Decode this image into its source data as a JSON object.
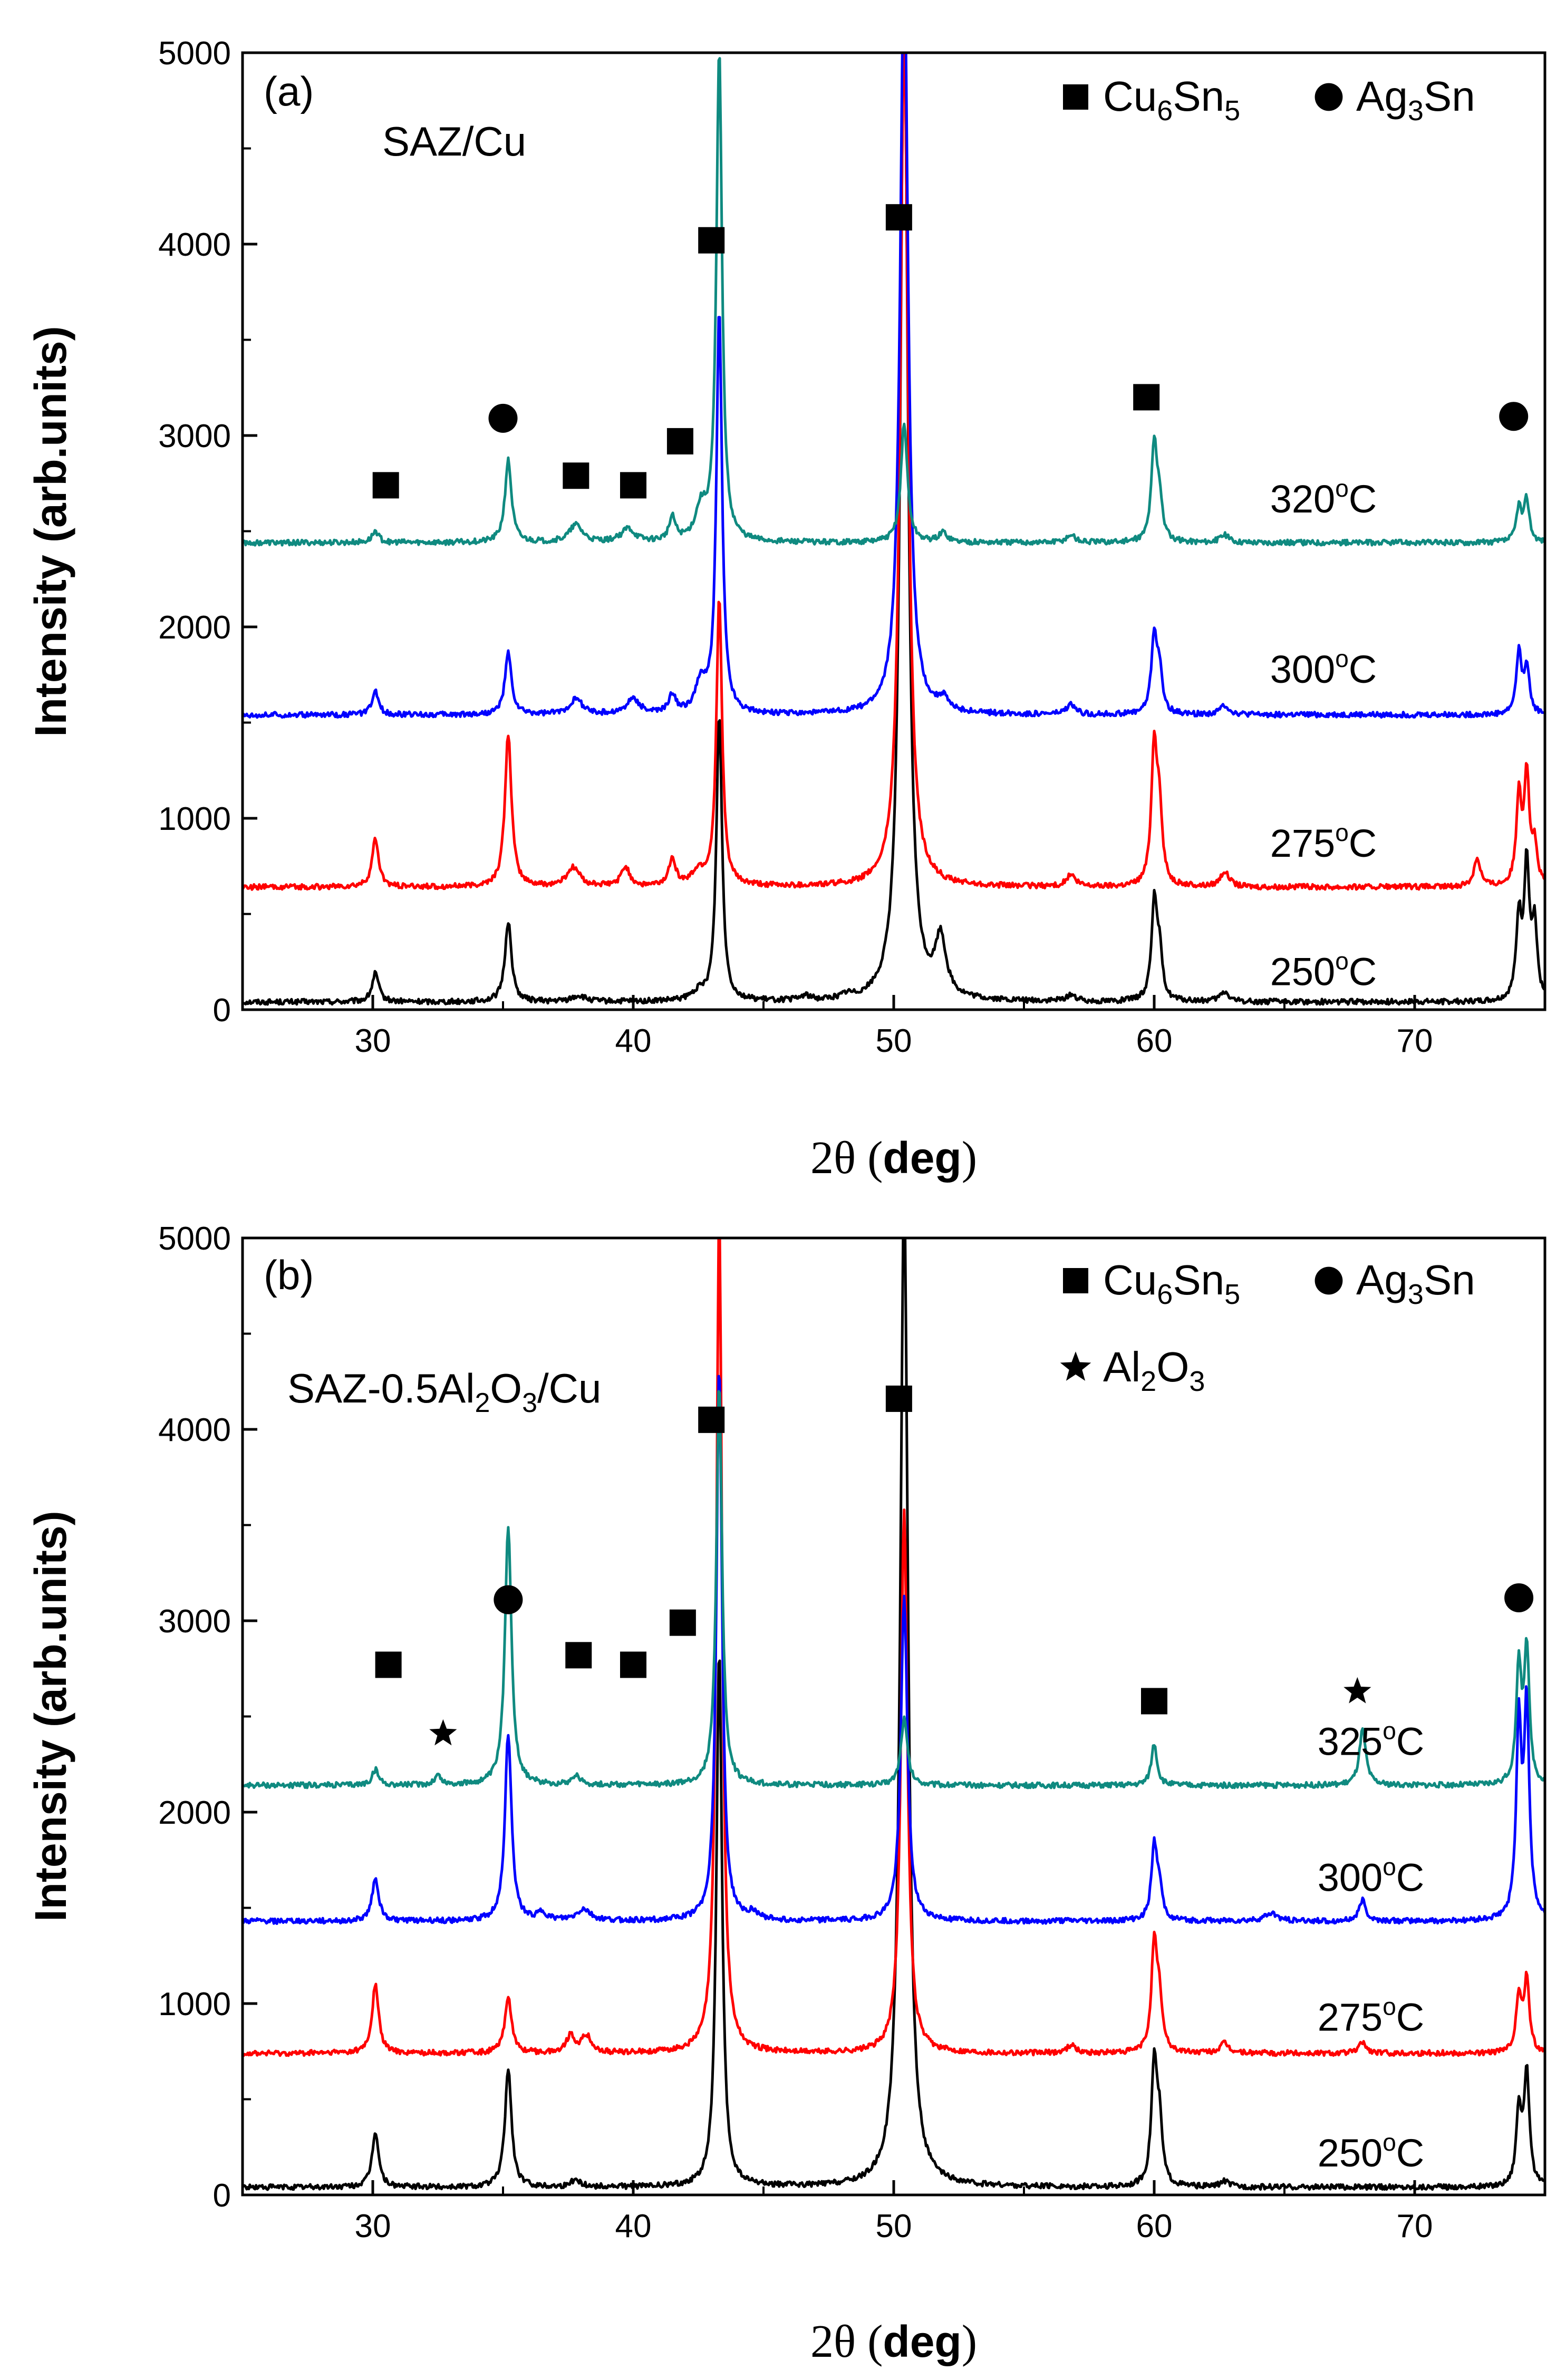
{
  "chart_data": [
    {
      "type": "line",
      "panel_label": "(a)",
      "title": "SAZ/Cu",
      "xlabel": {
        "symbol": "2θ",
        "open": " (",
        "unit": "deg",
        "close": ")"
      },
      "ylabel": "Intensity (arb.units)",
      "xlim": [
        25,
        75
      ],
      "ylim": [
        0,
        5000
      ],
      "xticks": [
        30,
        40,
        50,
        60,
        70
      ],
      "yticks": [
        0,
        1000,
        2000,
        3000,
        4000,
        5000
      ],
      "legend": [
        {
          "marker": "square",
          "formula": [
            "Cu",
            "6",
            "Sn",
            "5"
          ]
        },
        {
          "marker": "circle",
          "formula": [
            "Ag",
            "3",
            "Sn"
          ]
        }
      ],
      "series": [
        {
          "name": "250°C",
          "label_parts": [
            "250",
            "o",
            "C"
          ],
          "color": "#000000",
          "baseline": 40,
          "label_y": 200,
          "peaks": [
            [
              30.1,
              150,
              0.15
            ],
            [
              35.2,
              420,
              0.15
            ],
            [
              37.9,
              30,
              0.3
            ],
            [
              42.5,
              40,
              0.3
            ],
            [
              43.3,
              1500,
              0.13
            ],
            [
              46.6,
              25,
              0.2
            ],
            [
              48.2,
              20,
              0.2
            ],
            [
              50.4,
              5200,
              0.18
            ],
            [
              51.8,
              300,
              0.25
            ],
            [
              56.8,
              35,
              0.2
            ],
            [
              60.0,
              500,
              0.13
            ],
            [
              60.2,
              230,
              0.13
            ],
            [
              62.7,
              50,
              0.2
            ],
            [
              74.0,
              420,
              0.12
            ],
            [
              74.3,
              700,
              0.12
            ],
            [
              74.6,
              380,
              0.12
            ]
          ]
        },
        {
          "name": "275°C",
          "label_parts": [
            "275",
            "o",
            "C"
          ],
          "color": "#ff0000",
          "baseline": 640,
          "label_y": 870,
          "peaks": [
            [
              30.1,
              250,
              0.15
            ],
            [
              35.2,
              800,
              0.15
            ],
            [
              37.7,
              100,
              0.3
            ],
            [
              39.7,
              100,
              0.2
            ],
            [
              41.5,
              150,
              0.15
            ],
            [
              42.5,
              70,
              0.3
            ],
            [
              43.3,
              1500,
              0.13
            ],
            [
              50.4,
              4500,
              0.18
            ],
            [
              56.8,
              60,
              0.2
            ],
            [
              60.0,
              720,
              0.13
            ],
            [
              60.2,
              350,
              0.13
            ],
            [
              62.7,
              80,
              0.2
            ],
            [
              72.4,
              150,
              0.15
            ],
            [
              74.0,
              450,
              0.12
            ],
            [
              74.3,
              570,
              0.12
            ],
            [
              74.6,
              200,
              0.12
            ]
          ]
        },
        {
          "name": "300°C",
          "label_parts": [
            "300",
            "o",
            "C"
          ],
          "color": "#0000ff",
          "baseline": 1540,
          "label_y": 1780,
          "peaks": [
            [
              30.1,
              120,
              0.15
            ],
            [
              35.2,
              320,
              0.15
            ],
            [
              37.8,
              80,
              0.3
            ],
            [
              40.0,
              80,
              0.3
            ],
            [
              41.5,
              100,
              0.15
            ],
            [
              42.6,
              150,
              0.25
            ],
            [
              43.3,
              2100,
              0.13
            ],
            [
              50.4,
              4000,
              0.18
            ],
            [
              51.9,
              60,
              0.2
            ],
            [
              56.8,
              50,
              0.2
            ],
            [
              60.0,
              400,
              0.13
            ],
            [
              60.2,
              200,
              0.13
            ],
            [
              62.7,
              50,
              0.2
            ],
            [
              74.0,
              320,
              0.12
            ],
            [
              74.3,
              250,
              0.12
            ]
          ]
        },
        {
          "name": "320°C",
          "label_parts": [
            "320",
            "o",
            "C"
          ],
          "color": "#0f8a80",
          "baseline": 2440,
          "label_y": 2670,
          "peaks": [
            [
              30.1,
              60,
              0.15
            ],
            [
              35.2,
              430,
              0.15
            ],
            [
              37.8,
              90,
              0.3
            ],
            [
              39.8,
              70,
              0.3
            ],
            [
              41.5,
              120,
              0.15
            ],
            [
              42.6,
              160,
              0.25
            ],
            [
              43.3,
              2560,
              0.13
            ],
            [
              50.4,
              620,
              0.15
            ],
            [
              51.9,
              50,
              0.2
            ],
            [
              56.8,
              40,
              0.2
            ],
            [
              60.0,
              500,
              0.13
            ],
            [
              60.2,
              200,
              0.13
            ],
            [
              62.7,
              40,
              0.2
            ],
            [
              74.0,
              180,
              0.12
            ],
            [
              74.3,
              220,
              0.12
            ]
          ]
        }
      ],
      "markers": [
        {
          "shape": "square",
          "x": 30.5,
          "y": 2740
        },
        {
          "shape": "circle",
          "x": 35.0,
          "y": 3090
        },
        {
          "shape": "square",
          "x": 37.8,
          "y": 2790
        },
        {
          "shape": "square",
          "x": 40.0,
          "y": 2740
        },
        {
          "shape": "square",
          "x": 41.8,
          "y": 2970
        },
        {
          "shape": "square",
          "x": 43.0,
          "y": 4020
        },
        {
          "shape": "square",
          "x": 50.2,
          "y": 4140
        },
        {
          "shape": "square",
          "x": 59.7,
          "y": 3200
        },
        {
          "shape": "circle",
          "x": 73.8,
          "y": 3100
        }
      ]
    },
    {
      "type": "line",
      "panel_label": "(b)",
      "title": [
        "SAZ-0.5Al",
        "2",
        "O",
        "3",
        "/Cu"
      ],
      "xlabel": {
        "symbol": "2θ",
        "open": " (",
        "unit": "deg",
        "close": ")"
      },
      "ylabel": "Intensity (arb.units)",
      "xlim": [
        25,
        75
      ],
      "ylim": [
        0,
        5000
      ],
      "xticks": [
        30,
        40,
        50,
        60,
        70
      ],
      "yticks": [
        0,
        1000,
        2000,
        3000,
        4000,
        5000
      ],
      "legend": [
        {
          "marker": "square",
          "formula": [
            "Cu",
            "6",
            "Sn",
            "5"
          ]
        },
        {
          "marker": "circle",
          "formula": [
            "Ag",
            "3",
            "Sn"
          ]
        },
        {
          "marker": "star",
          "formula": [
            "Al",
            "2",
            "O",
            "3"
          ]
        }
      ],
      "series": [
        {
          "name": "250°C",
          "label_parts": [
            "250",
            "o",
            "C"
          ],
          "color": "#000000",
          "baseline": 40,
          "label_y": 220,
          "peaks": [
            [
              30.1,
              290,
              0.15
            ],
            [
              35.2,
              620,
              0.15
            ],
            [
              37.8,
              40,
              0.2
            ],
            [
              43.3,
              2800,
              0.13
            ],
            [
              50.4,
              5200,
              0.18
            ],
            [
              60.0,
              630,
              0.13
            ],
            [
              60.2,
              300,
              0.13
            ],
            [
              62.7,
              30,
              0.2
            ],
            [
              74.0,
              400,
              0.12
            ],
            [
              74.3,
              600,
              0.12
            ]
          ]
        },
        {
          "name": "275°C",
          "label_parts": [
            "275",
            "o",
            "C"
          ],
          "color": "#ff0000",
          "baseline": 740,
          "label_y": 930,
          "peaks": [
            [
              30.1,
              360,
              0.15
            ],
            [
              35.2,
              300,
              0.15
            ],
            [
              37.6,
              90,
              0.2
            ],
            [
              38.2,
              90,
              0.2
            ],
            [
              43.3,
              4400,
              0.13
            ],
            [
              50.4,
              2850,
              0.15
            ],
            [
              56.8,
              40,
              0.2
            ],
            [
              60.0,
              550,
              0.13
            ],
            [
              60.2,
              250,
              0.13
            ],
            [
              62.7,
              50,
              0.2
            ],
            [
              68.0,
              60,
              0.15
            ],
            [
              74.0,
              300,
              0.12
            ],
            [
              74.3,
              380,
              0.12
            ]
          ]
        },
        {
          "name": "300°C",
          "label_parts": [
            "300",
            "o",
            "C"
          ],
          "color": "#0000ff",
          "baseline": 1430,
          "label_y": 1660,
          "peaks": [
            [
              30.1,
              230,
              0.15
            ],
            [
              35.2,
              980,
              0.15
            ],
            [
              36.5,
              40,
              0.2
            ],
            [
              38.1,
              60,
              0.3
            ],
            [
              43.3,
              2900,
              0.13
            ],
            [
              44.6,
              40,
              0.2
            ],
            [
              50.4,
              1700,
              0.15
            ],
            [
              60.0,
              380,
              0.13
            ],
            [
              60.2,
              150,
              0.13
            ],
            [
              64.5,
              40,
              0.3
            ],
            [
              68.0,
              110,
              0.15
            ],
            [
              74.0,
              1000,
              0.12
            ],
            [
              74.3,
              1100,
              0.12
            ]
          ]
        },
        {
          "name": "325°C",
          "label_parts": [
            "325",
            "o",
            "C"
          ],
          "color": "#0f8a80",
          "baseline": 2140,
          "label_y": 2370,
          "peaks": [
            [
              30.1,
              80,
              0.15
            ],
            [
              32.5,
              50,
              0.15
            ],
            [
              35.2,
              1360,
              0.15
            ],
            [
              37.8,
              50,
              0.2
            ],
            [
              43.3,
              2100,
              0.13
            ],
            [
              50.4,
              350,
              0.15
            ],
            [
              60.0,
              220,
              0.13
            ],
            [
              68.0,
              290,
              0.15
            ],
            [
              74.0,
              600,
              0.12
            ],
            [
              74.3,
              700,
              0.12
            ]
          ]
        }
      ],
      "markers": [
        {
          "shape": "square",
          "x": 30.6,
          "y": 2770
        },
        {
          "shape": "star",
          "x": 32.7,
          "y": 2410
        },
        {
          "shape": "circle",
          "x": 35.2,
          "y": 3110
        },
        {
          "shape": "square",
          "x": 37.9,
          "y": 2820
        },
        {
          "shape": "square",
          "x": 40.0,
          "y": 2770
        },
        {
          "shape": "square",
          "x": 41.9,
          "y": 2990
        },
        {
          "shape": "square",
          "x": 43.0,
          "y": 4050
        },
        {
          "shape": "square",
          "x": 50.2,
          "y": 4160
        },
        {
          "shape": "square",
          "x": 60.0,
          "y": 2580
        },
        {
          "shape": "star",
          "x": 67.8,
          "y": 2630
        },
        {
          "shape": "circle",
          "x": 74.0,
          "y": 3120
        }
      ]
    }
  ]
}
